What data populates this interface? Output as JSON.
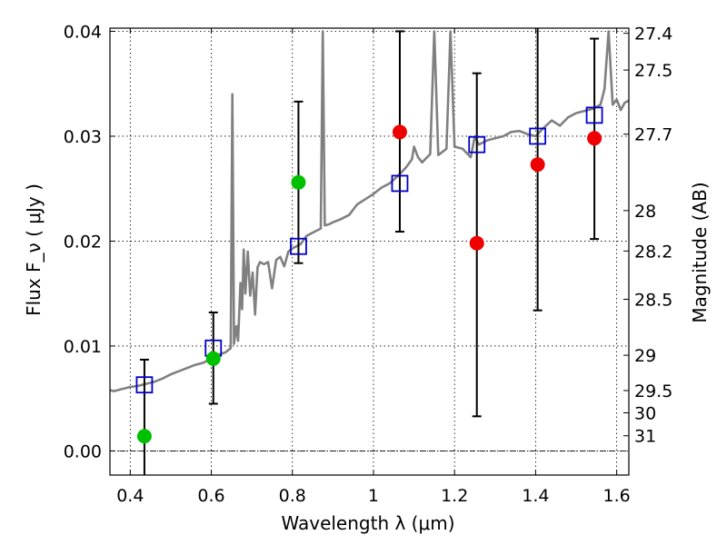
{
  "chart_data": {
    "type": "scatter",
    "xlabel": "Wavelength  λ (μm)",
    "ylabel": "Flux  F_ν  ( μJy )",
    "y2label": "Magnitude (AB)",
    "xlim": [
      0.35,
      1.63
    ],
    "ylim": [
      -0.0023,
      0.0403
    ],
    "grid": true,
    "x_ticks": [
      {
        "value": 0.4,
        "label": "0.4"
      },
      {
        "value": 0.6,
        "label": "0.6"
      },
      {
        "value": 0.8,
        "label": "0.8"
      },
      {
        "value": 1.0,
        "label": "1"
      },
      {
        "value": 1.2,
        "label": "1.2"
      },
      {
        "value": 1.4,
        "label": "1.4"
      },
      {
        "value": 1.6,
        "label": "1.6"
      }
    ],
    "y_ticks": [
      {
        "value": 0.0,
        "label": "0.00"
      },
      {
        "value": 0.01,
        "label": "0.01"
      },
      {
        "value": 0.02,
        "label": "0.02"
      },
      {
        "value": 0.03,
        "label": "0.03"
      },
      {
        "value": 0.04,
        "label": "0.04"
      }
    ],
    "mag_ticks": [
      "27.4",
      "27.5",
      "27.7",
      "28",
      "28.2",
      "28.5",
      "29",
      "29.5",
      "30",
      "31"
    ],
    "colors": {
      "observed_green": "#00c000",
      "observed_red": "#ee0000",
      "model": "#0000cc",
      "spectrum": "#808080",
      "error_bar": "#000000",
      "zero_line": "#000000"
    },
    "spectrum": [
      [
        0.35,
        0.0058
      ],
      [
        0.36,
        0.0057
      ],
      [
        0.38,
        0.0059
      ],
      [
        0.4,
        0.0061
      ],
      [
        0.42,
        0.0062
      ],
      [
        0.44,
        0.0064
      ],
      [
        0.46,
        0.0066
      ],
      [
        0.48,
        0.0069
      ],
      [
        0.5,
        0.0073
      ],
      [
        0.52,
        0.0076
      ],
      [
        0.54,
        0.0079
      ],
      [
        0.56,
        0.0082
      ],
      [
        0.58,
        0.0084
      ],
      [
        0.6,
        0.0088
      ],
      [
        0.62,
        0.0092
      ],
      [
        0.635,
        0.0094
      ],
      [
        0.648,
        0.0098
      ],
      [
        0.652,
        0.034
      ],
      [
        0.656,
        0.0102
      ],
      [
        0.662,
        0.0119
      ],
      [
        0.666,
        0.0105
      ],
      [
        0.672,
        0.016
      ],
      [
        0.676,
        0.0135
      ],
      [
        0.68,
        0.0192
      ],
      [
        0.684,
        0.015
      ],
      [
        0.69,
        0.019
      ],
      [
        0.696,
        0.0148
      ],
      [
        0.702,
        0.017
      ],
      [
        0.708,
        0.013
      ],
      [
        0.714,
        0.0175
      ],
      [
        0.72,
        0.018
      ],
      [
        0.73,
        0.0178
      ],
      [
        0.74,
        0.018
      ],
      [
        0.75,
        0.0155
      ],
      [
        0.76,
        0.0182
      ],
      [
        0.77,
        0.0185
      ],
      [
        0.78,
        0.0176
      ],
      [
        0.79,
        0.019
      ],
      [
        0.8,
        0.0193
      ],
      [
        0.81,
        0.0195
      ],
      [
        0.82,
        0.0197
      ],
      [
        0.835,
        0.0205
      ],
      [
        0.85,
        0.0208
      ],
      [
        0.86,
        0.021
      ],
      [
        0.87,
        0.0212
      ],
      [
        0.875,
        0.04
      ],
      [
        0.88,
        0.0215
      ],
      [
        0.89,
        0.0216
      ],
      [
        0.9,
        0.0218
      ],
      [
        0.92,
        0.0221
      ],
      [
        0.94,
        0.0225
      ],
      [
        0.96,
        0.0235
      ],
      [
        0.98,
        0.024
      ],
      [
        1.0,
        0.0245
      ],
      [
        1.02,
        0.0251
      ],
      [
        1.04,
        0.0255
      ],
      [
        1.06,
        0.0262
      ],
      [
        1.08,
        0.027
      ],
      [
        1.095,
        0.0278
      ],
      [
        1.1,
        0.029
      ],
      [
        1.11,
        0.028
      ],
      [
        1.12,
        0.0275
      ],
      [
        1.14,
        0.0283
      ],
      [
        1.15,
        0.04
      ],
      [
        1.16,
        0.0282
      ],
      [
        1.18,
        0.0288
      ],
      [
        1.19,
        0.04
      ],
      [
        1.2,
        0.029
      ],
      [
        1.22,
        0.0288
      ],
      [
        1.24,
        0.028
      ],
      [
        1.25,
        0.03
      ],
      [
        1.26,
        0.0292
      ],
      [
        1.28,
        0.0296
      ],
      [
        1.3,
        0.0298
      ],
      [
        1.32,
        0.03
      ],
      [
        1.34,
        0.0304
      ],
      [
        1.36,
        0.0305
      ],
      [
        1.38,
        0.0302
      ],
      [
        1.4,
        0.03
      ],
      [
        1.42,
        0.0308
      ],
      [
        1.44,
        0.0315
      ],
      [
        1.46,
        0.031
      ],
      [
        1.48,
        0.0318
      ],
      [
        1.5,
        0.0322
      ],
      [
        1.52,
        0.0324
      ],
      [
        1.54,
        0.0326
      ],
      [
        1.56,
        0.033
      ],
      [
        1.57,
        0.0345
      ],
      [
        1.58,
        0.04
      ],
      [
        1.59,
        0.033
      ],
      [
        1.6,
        0.0335
      ],
      [
        1.61,
        0.0325
      ],
      [
        1.62,
        0.0332
      ],
      [
        1.63,
        0.0334
      ]
    ],
    "observed": [
      {
        "x": 0.435,
        "y": 0.0014,
        "err_low": -0.003,
        "err_high": 0.0087,
        "color": "green"
      },
      {
        "x": 0.605,
        "y": 0.0088,
        "err_low": 0.0045,
        "err_high": 0.0132,
        "color": "green"
      },
      {
        "x": 0.815,
        "y": 0.0256,
        "err_low": 0.0179,
        "err_high": 0.0333,
        "color": "green"
      },
      {
        "x": 1.065,
        "y": 0.0304,
        "err_low": 0.0209,
        "err_high": 0.04,
        "color": "red"
      },
      {
        "x": 1.255,
        "y": 0.0198,
        "err_low": 0.0033,
        "err_high": 0.036,
        "color": "red"
      },
      {
        "x": 1.405,
        "y": 0.0273,
        "err_low": 0.0134,
        "err_high": 0.0403,
        "color": "red"
      },
      {
        "x": 1.545,
        "y": 0.0298,
        "err_low": 0.0202,
        "err_high": 0.0393,
        "color": "red"
      }
    ],
    "model_points": [
      {
        "x": 0.435,
        "y": 0.0063
      },
      {
        "x": 0.605,
        "y": 0.0098
      },
      {
        "x": 0.815,
        "y": 0.0195
      },
      {
        "x": 1.065,
        "y": 0.0255
      },
      {
        "x": 1.255,
        "y": 0.0292
      },
      {
        "x": 1.405,
        "y": 0.03
      },
      {
        "x": 1.545,
        "y": 0.032
      }
    ]
  }
}
